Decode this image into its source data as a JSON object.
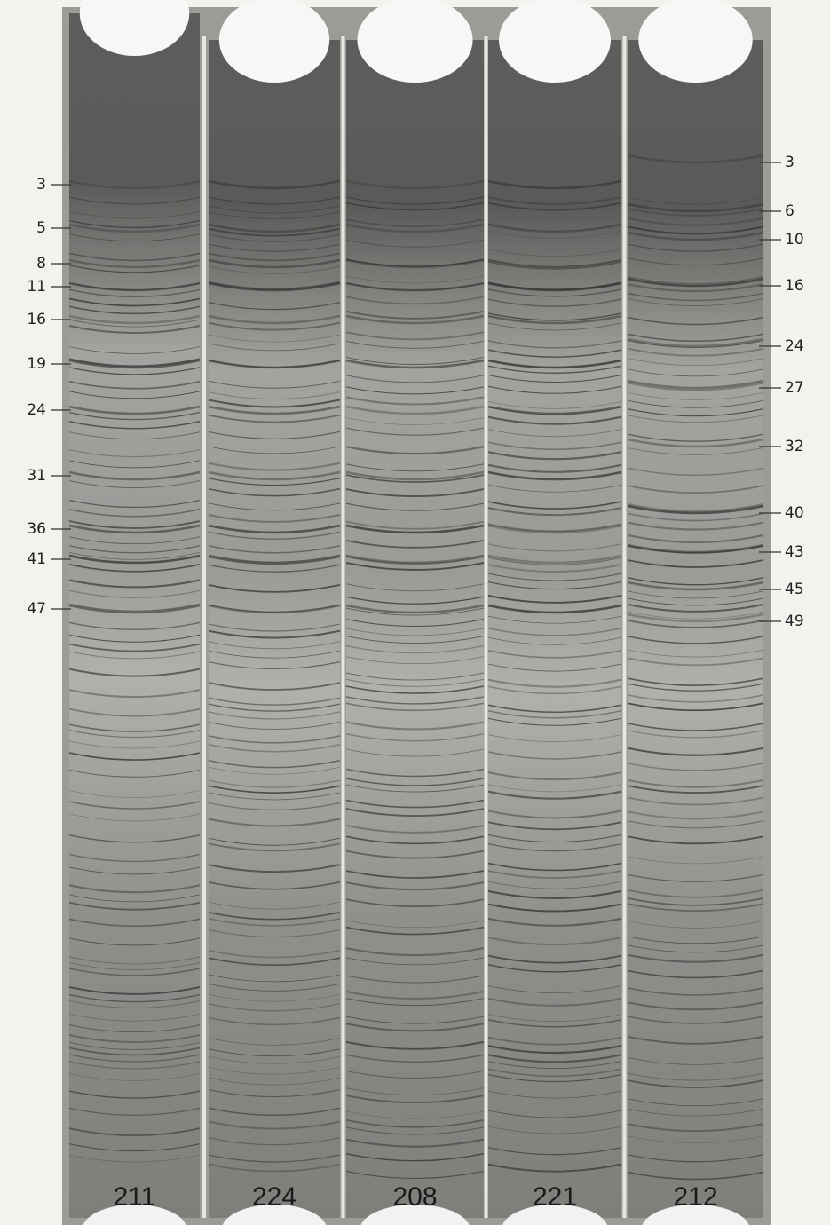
{
  "left_markers": [
    "3",
    "5",
    "8",
    "11",
    "16",
    "19",
    "24",
    "31",
    "36",
    "41",
    "47"
  ],
  "right_markers": [
    "3",
    "6",
    "10",
    "16",
    "24",
    "27",
    "32",
    "40",
    "43",
    "45",
    "49"
  ],
  "lanes": [
    "211",
    "224",
    "208",
    "221",
    "212"
  ]
}
